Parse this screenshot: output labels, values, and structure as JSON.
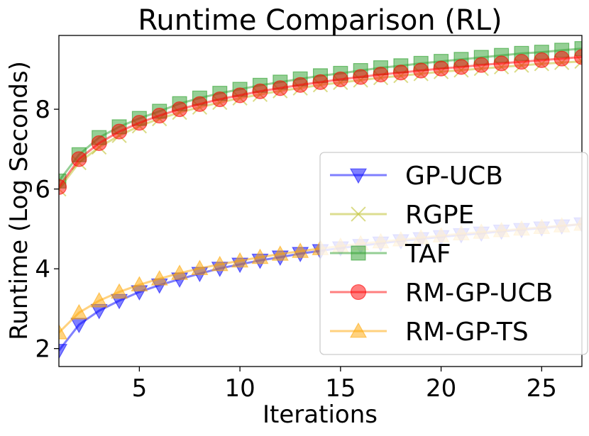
{
  "chart_data": {
    "type": "line",
    "title": "Runtime Comparison (RL)",
    "xlabel": "Iterations",
    "ylabel": "Runtime (Log Seconds)",
    "xlim": [
      1,
      27
    ],
    "ylim": [
      1.55,
      9.85
    ],
    "xticks": [
      5,
      10,
      15,
      20,
      25
    ],
    "yticks": [
      2,
      4,
      6,
      8
    ],
    "legend_position": "center-right",
    "x": [
      1,
      2,
      3,
      4,
      5,
      6,
      7,
      8,
      9,
      10,
      11,
      12,
      13,
      14,
      15,
      16,
      17,
      18,
      19,
      20,
      21,
      22,
      23,
      24,
      25,
      26,
      27
    ],
    "series": [
      {
        "name": "GP-UCB",
        "color": "#0000ff",
        "marker": "triangle-down",
        "values": [
          1.95,
          2.6,
          2.95,
          3.2,
          3.42,
          3.59,
          3.74,
          3.88,
          4.01,
          4.11,
          4.21,
          4.29,
          4.38,
          4.45,
          4.52,
          4.58,
          4.64,
          4.7,
          4.75,
          4.8,
          4.85,
          4.89,
          4.94,
          4.98,
          5.02,
          5.07,
          5.12
        ]
      },
      {
        "name": "RGPE",
        "color": "#bcbd22",
        "marker": "x",
        "values": [
          6.0,
          6.66,
          7.05,
          7.34,
          7.58,
          7.76,
          7.92,
          8.05,
          8.17,
          8.28,
          8.37,
          8.46,
          8.53,
          8.61,
          8.67,
          8.73,
          8.79,
          8.84,
          8.89,
          8.94,
          8.98,
          9.02,
          9.06,
          9.1,
          9.14,
          9.17,
          9.2
        ]
      },
      {
        "name": "TAF",
        "color": "#2ca02c",
        "marker": "square",
        "values": [
          6.2,
          6.86,
          7.29,
          7.56,
          7.77,
          7.95,
          8.14,
          8.28,
          8.4,
          8.5,
          8.6,
          8.68,
          8.76,
          8.84,
          8.9,
          8.97,
          9.04,
          9.09,
          9.15,
          9.2,
          9.25,
          9.3,
          9.35,
          9.4,
          9.43,
          9.48,
          9.52
        ]
      },
      {
        "name": "RM-GP-UCB",
        "color": "#ff0000",
        "marker": "circle",
        "values": [
          6.05,
          6.75,
          7.15,
          7.44,
          7.66,
          7.84,
          8.0,
          8.13,
          8.25,
          8.35,
          8.45,
          8.53,
          8.61,
          8.68,
          8.75,
          8.81,
          8.87,
          8.92,
          8.97,
          9.02,
          9.06,
          9.11,
          9.15,
          9.19,
          9.23,
          9.27,
          9.31
        ]
      },
      {
        "name": "RM-GP-TS",
        "color": "#ffa500",
        "marker": "triangle-up",
        "values": [
          2.4,
          2.9,
          3.2,
          3.42,
          3.6,
          3.75,
          3.89,
          4.01,
          4.11,
          4.2,
          4.29,
          4.37,
          4.44,
          4.51,
          4.57,
          4.63,
          4.68,
          4.73,
          4.78,
          4.83,
          4.88,
          4.92,
          4.96,
          5.0,
          5.04,
          5.08,
          5.12
        ]
      }
    ]
  }
}
